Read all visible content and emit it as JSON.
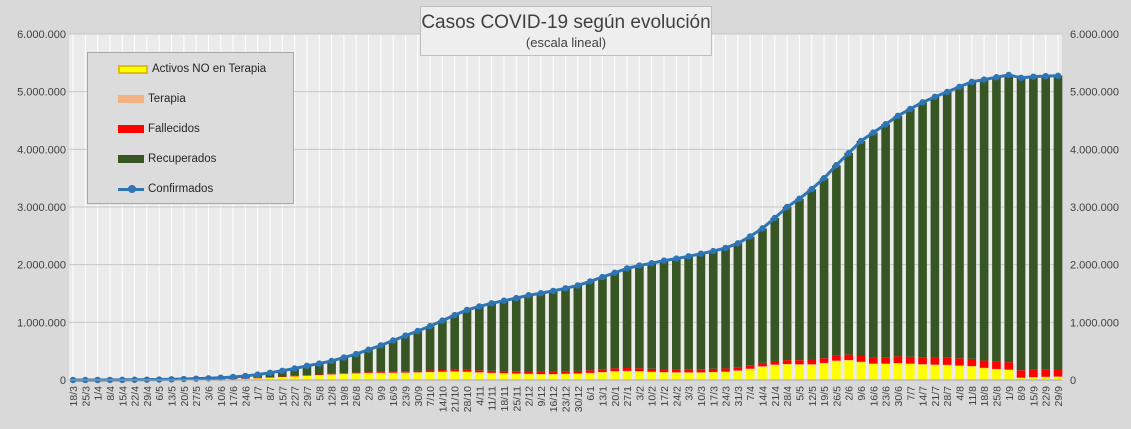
{
  "chart_data": {
    "type": "bar",
    "title": "Casos COVID-19 según evolución",
    "subtitle": "(escala lineal)",
    "ylim": [
      0,
      6000000
    ],
    "y_ticks": [
      "0",
      "1.000.000",
      "2.000.000",
      "3.000.000",
      "4.000.000",
      "5.000.000",
      "6.000.000"
    ],
    "x_tick_labels": [
      "18/3",
      "25/3",
      "1/4",
      "8/4",
      "15/4",
      "22/4",
      "29/4",
      "6/5",
      "13/5",
      "20/5",
      "27/5",
      "3/6",
      "10/6",
      "17/6",
      "24/6",
      "1/7",
      "8/7",
      "15/7",
      "22/7",
      "29/7",
      "5/8",
      "12/8",
      "19/8",
      "26/8",
      "2/9",
      "9/9",
      "16/9",
      "23/9",
      "30/9",
      "7/10",
      "14/10",
      "21/10",
      "28/10",
      "4/11",
      "11/11",
      "18/11",
      "25/11",
      "2/12",
      "9/12",
      "16/12",
      "23/12",
      "30/12",
      "6/1",
      "13/1",
      "20/1",
      "27/1",
      "3/2",
      "10/2",
      "17/2",
      "24/2",
      "3/3",
      "10/3",
      "17/3",
      "24/3",
      "31/3",
      "7/4",
      "14/4",
      "21/4",
      "28/4",
      "5/5",
      "12/5",
      "19/5",
      "26/5",
      "2/6",
      "9/6",
      "16/6",
      "23/6",
      "30/6",
      "7/7",
      "14/7",
      "21/7",
      "28/7",
      "4/8",
      "11/8",
      "18/8",
      "25/8",
      "1/9",
      "8/9",
      "15/9",
      "22/9",
      "29/9"
    ],
    "weekly_series_note": "values sampled weekly, one per x tick",
    "series": [
      {
        "name": "Activos NO en Terapia",
        "color": "#ffff00",
        "kind": "stacked-bar",
        "values": [
          0,
          500,
          1000,
          1500,
          2000,
          2500,
          3000,
          4000,
          6000,
          9000,
          12000,
          15000,
          18000,
          22000,
          28000,
          35000,
          45000,
          55000,
          65000,
          75000,
          85000,
          95000,
          105000,
          112000,
          118000,
          120000,
          122000,
          125000,
          130000,
          135000,
          140000,
          145000,
          140000,
          130000,
          120000,
          115000,
          110000,
          105000,
          100000,
          100000,
          105000,
          110000,
          120000,
          135000,
          150000,
          155000,
          150000,
          140000,
          135000,
          130000,
          130000,
          130000,
          135000,
          140000,
          160000,
          190000,
          230000,
          260000,
          270000,
          265000,
          265000,
          290000,
          330000,
          340000,
          310000,
          280000,
          280000,
          290000,
          280000,
          270000,
          265000,
          260000,
          250000,
          240000,
          210000,
          190000,
          180000,
          40000,
          50000,
          55000,
          60000
        ]
      },
      {
        "name": "Terapia",
        "color": "#f4b183",
        "kind": "stacked-bar",
        "values": [
          0,
          50,
          100,
          150,
          200,
          250,
          300,
          350,
          400,
          500,
          600,
          700,
          900,
          1100,
          1300,
          1600,
          2000,
          2400,
          2700,
          3000,
          3300,
          3600,
          3900,
          4200,
          4500,
          4700,
          4900,
          5000,
          5000,
          4900,
          4800,
          4600,
          4400,
          4100,
          3800,
          3600,
          3400,
          3300,
          3300,
          3400,
          3500,
          3600,
          3700,
          3700,
          3600,
          3500,
          3500,
          3400,
          3300,
          3300,
          3400,
          3700,
          4200,
          4800,
          5500,
          6300,
          7000,
          7500,
          7700,
          7500,
          7200,
          7000,
          6800,
          6500,
          6000,
          5500,
          5000,
          4500,
          4000,
          3500,
          3000,
          2600,
          2300,
          2000,
          1800,
          1600,
          1500,
          1400,
          1300,
          1300,
          1300
        ]
      },
      {
        "name": "Fallecidos",
        "color": "#ff0000",
        "kind": "stacked-bar",
        "values": [
          0,
          10,
          40,
          90,
          150,
          230,
          300,
          400,
          500,
          600,
          750,
          900,
          1100,
          1400,
          1800,
          2300,
          3000,
          3800,
          4700,
          5800,
          7000,
          8500,
          10000,
          12000,
          14000,
          16000,
          18500,
          21000,
          23000,
          25500,
          28000,
          30000,
          31500,
          33000,
          35000,
          36500,
          38000,
          39500,
          41000,
          42000,
          43000,
          44000,
          45000,
          46500,
          48000,
          49000,
          50000,
          51000,
          51500,
          52000,
          53000,
          54000,
          55000,
          56000,
          57000,
          58500,
          60000,
          63000,
          67000,
          71000,
          75000,
          80000,
          86000,
          93000,
          100000,
          106000,
          111000,
          115000,
          118000,
          120000,
          121000,
          122000,
          123000,
          124000,
          125000,
          126000,
          127000,
          128000,
          128500,
          129000,
          129500
        ]
      },
      {
        "name": "Recuperados",
        "color": "#375623",
        "kind": "stacked-bar",
        "values": [
          0,
          0,
          0,
          0,
          500,
          1500,
          2500,
          3000,
          5000,
          7000,
          10000,
          14000,
          20000,
          28000,
          40000,
          55000,
          75000,
          100000,
          130000,
          160000,
          190000,
          230000,
          270000,
          320000,
          390000,
          460000,
          540000,
          620000,
          690000,
          770000,
          860000,
          950000,
          1040000,
          1110000,
          1170000,
          1220000,
          1270000,
          1320000,
          1360000,
          1400000,
          1440000,
          1480000,
          1540000,
          1600000,
          1660000,
          1730000,
          1780000,
          1830000,
          1880000,
          1920000,
          1960000,
          2000000,
          2040000,
          2090000,
          2150000,
          2230000,
          2330000,
          2480000,
          2660000,
          2800000,
          2960000,
          3120000,
          3300000,
          3500000,
          3730000,
          3900000,
          4040000,
          4170000,
          4300000,
          4420000,
          4520000,
          4610000,
          4710000,
          4800000,
          4870000,
          4930000,
          4980000,
          5070000,
          5080000,
          5085000,
          5090000
        ]
      },
      {
        "name": "Confirmados",
        "color": "#2e75b6",
        "kind": "line-markers",
        "values": [
          0,
          500,
          1000,
          1500,
          3000,
          4500,
          6000,
          8000,
          12000,
          17000,
          23000,
          30000,
          40000,
          52000,
          70000,
          93000,
          125000,
          160000,
          200000,
          245000,
          285000,
          330000,
          390000,
          450000,
          525000,
          600000,
          685000,
          770000,
          850000,
          935000,
          1030000,
          1125000,
          1215000,
          1275000,
          1330000,
          1375000,
          1420000,
          1470000,
          1505000,
          1545000,
          1590000,
          1640000,
          1710000,
          1785000,
          1860000,
          1935000,
          1985000,
          2025000,
          2070000,
          2105000,
          2145000,
          2190000,
          2235000,
          2290000,
          2370000,
          2490000,
          2630000,
          2810000,
          3000000,
          3145000,
          3310000,
          3500000,
          3725000,
          3935000,
          4145000,
          4290000,
          4435000,
          4580000,
          4700000,
          4815000,
          4910000,
          4995000,
          5085000,
          5170000,
          5210000,
          5250000,
          5290000,
          5240000,
          5260000,
          5270000,
          5275000
        ]
      }
    ],
    "legend_position": "top-left",
    "grid": true
  }
}
